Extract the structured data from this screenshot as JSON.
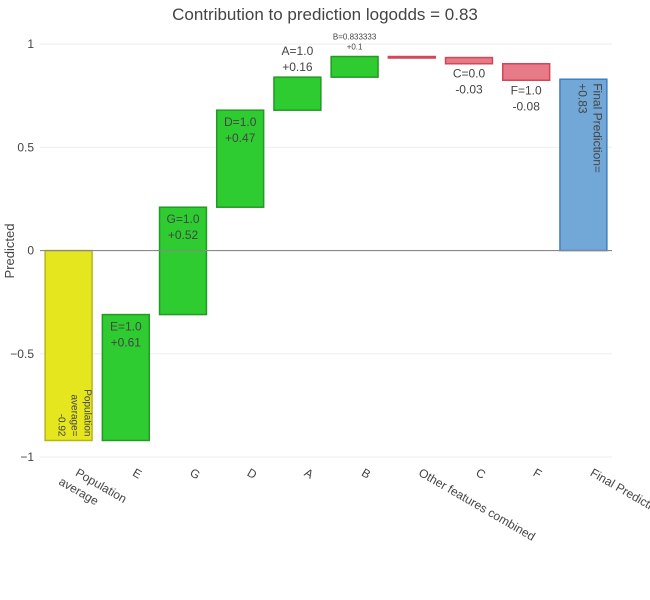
{
  "chart_data": {
    "type": "waterfall",
    "title": "Contribution to prediction logodds = 0.83",
    "ylabel": "Predicted",
    "ylim": [
      -1,
      1.02
    ],
    "yticks": [
      {
        "value": 1,
        "label": "1"
      },
      {
        "value": 0.5,
        "label": "0.5"
      },
      {
        "value": 0,
        "label": "0"
      },
      {
        "value": -0.5,
        "label": "−0.5"
      },
      {
        "value": -1,
        "label": "−1"
      }
    ],
    "colors": {
      "base": "#e6e61e",
      "base_border": "#b5b51a",
      "positive": "#2ecc31",
      "positive_border": "#239a25",
      "negative": "#e67a87",
      "negative_border": "#d2475a",
      "final": "#72a8d8",
      "final_border": "#3f7fc0",
      "zero_line": "#888888",
      "grid": "#eeeeee"
    },
    "bars": [
      {
        "category": "Population average",
        "kind": "base",
        "base": 0,
        "delta": -0.92,
        "label_lines": [
          "Population",
          "average=",
          "-0.92"
        ],
        "label_mode": "vertical-bottom"
      },
      {
        "category": "E",
        "kind": "positive",
        "base": -0.92,
        "delta": 0.61,
        "label_lines": [
          "E=1.0",
          "+0.61"
        ],
        "label_mode": "inside-top"
      },
      {
        "category": "G",
        "kind": "positive",
        "base": -0.31,
        "delta": 0.52,
        "label_lines": [
          "G=1.0",
          "+0.52"
        ],
        "label_mode": "inside-top"
      },
      {
        "category": "D",
        "kind": "positive",
        "base": 0.21,
        "delta": 0.47,
        "label_lines": [
          "D=1.0",
          "+0.47"
        ],
        "label_mode": "inside-top"
      },
      {
        "category": "A",
        "kind": "positive",
        "base": 0.68,
        "delta": 0.16,
        "label_lines": [
          "A=1.0",
          "+0.16"
        ],
        "label_mode": "above"
      },
      {
        "category": "B",
        "kind": "positive",
        "base": 0.84,
        "delta": 0.1,
        "label_lines": [
          "B=0.833333",
          "+0.1"
        ],
        "label_mode": "above-small"
      },
      {
        "category": "Other features combined",
        "kind": "negative",
        "base": 0.94,
        "delta": -0.005,
        "label_lines": [],
        "label_mode": "none"
      },
      {
        "category": "C",
        "kind": "negative",
        "base": 0.935,
        "delta": -0.03,
        "label_lines": [
          "C=0.0",
          "-0.03"
        ],
        "label_mode": "below"
      },
      {
        "category": "F",
        "kind": "negative",
        "base": 0.905,
        "delta": -0.08,
        "label_lines": [
          "F=1.0",
          "-0.08"
        ],
        "label_mode": "below"
      },
      {
        "category": "Final Prediction",
        "kind": "final",
        "base": 0,
        "delta": 0.83,
        "label_lines": [
          "Final Prediction=",
          "+0.83"
        ],
        "label_mode": "vertical-top"
      }
    ],
    "xtick_labels": [
      [
        "Population",
        "average"
      ],
      [
        "E"
      ],
      [
        "G"
      ],
      [
        "D"
      ],
      [
        "A"
      ],
      [
        "B"
      ],
      [
        "Other features combined"
      ],
      [
        "C"
      ],
      [
        "F"
      ],
      [
        "Final Prediction"
      ]
    ]
  }
}
